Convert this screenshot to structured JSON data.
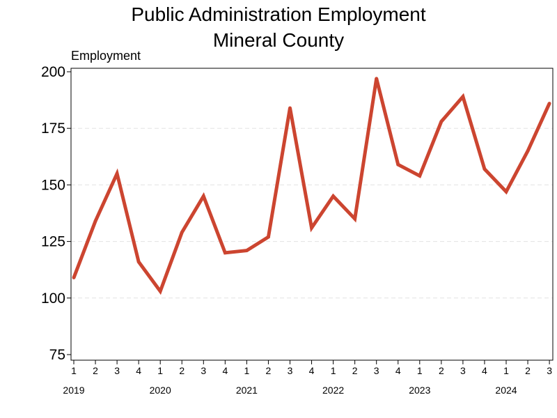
{
  "chart_data": {
    "type": "line",
    "title_line1": "Public Administration Employment",
    "title_line2": "Mineral County",
    "ylabel": "Employment",
    "xlabel": "",
    "ylim": [
      73,
      200
    ],
    "y_ticks": [
      75,
      100,
      125,
      150,
      175,
      200
    ],
    "grid": "horizontal dashed",
    "legend": "none",
    "line_color": "#cc4530",
    "x_quarters": [
      "1",
      "2",
      "3",
      "4",
      "1",
      "2",
      "3",
      "4",
      "1",
      "2",
      "3",
      "4",
      "1",
      "2",
      "3",
      "4",
      "1",
      "2",
      "3",
      "4",
      "1",
      "2",
      "3"
    ],
    "years": [
      {
        "label": "2019",
        "start_index": 0
      },
      {
        "label": "2020",
        "start_index": 4
      },
      {
        "label": "2021",
        "start_index": 8
      },
      {
        "label": "2022",
        "start_index": 12
      },
      {
        "label": "2023",
        "start_index": 16
      },
      {
        "label": "2024",
        "start_index": 20
      }
    ],
    "series": [
      {
        "values": [
          109,
          134,
          155,
          116,
          103,
          129,
          145,
          120,
          121,
          127,
          184,
          131,
          145,
          135,
          197,
          159,
          154,
          178,
          189,
          157,
          147,
          165,
          186
        ]
      }
    ]
  }
}
